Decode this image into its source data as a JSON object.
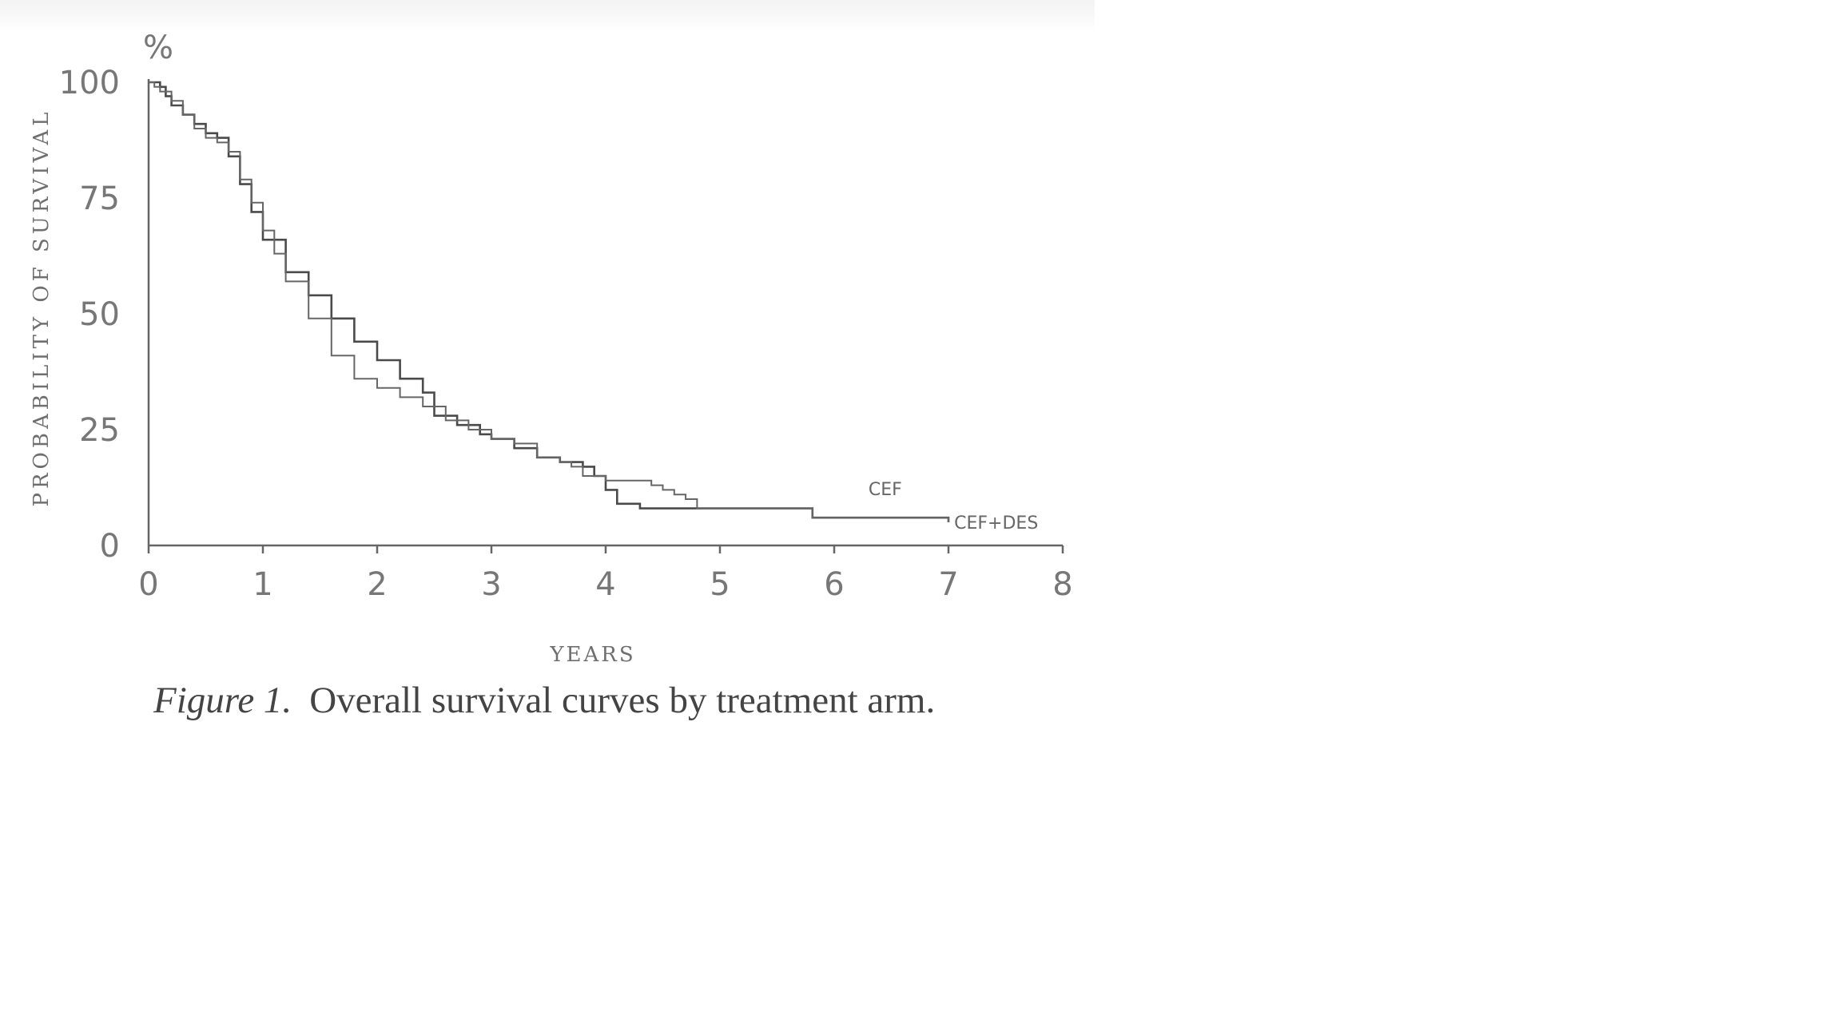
{
  "caption": {
    "figure_number": "Figure 1.",
    "text": "Overall survival curves by treatment arm."
  },
  "chart_data": {
    "type": "line",
    "title": "",
    "xlabel": "YEARS",
    "ylabel": "PROBABILITY OF SURVIVAL",
    "y_unit": "%",
    "xlim": [
      0,
      8
    ],
    "ylim": [
      0,
      100
    ],
    "x_ticks": [
      "0",
      "1",
      "2",
      "3",
      "4",
      "5",
      "6",
      "7",
      "8"
    ],
    "y_ticks": [
      "0",
      "25",
      "50",
      "75",
      "100"
    ],
    "grid": false,
    "legend": "direct labels at line ends",
    "series": [
      {
        "name": "CEF",
        "color": "#4a4a4a",
        "x": [
          0,
          0.05,
          0.1,
          0.15,
          0.2,
          0.3,
          0.4,
          0.5,
          0.6,
          0.7,
          0.8,
          0.9,
          1.0,
          1.2,
          1.4,
          1.6,
          1.8,
          2.0,
          2.2,
          2.4,
          2.5,
          2.7,
          2.9,
          3.0,
          3.2,
          3.4,
          3.6,
          3.8,
          3.9,
          4.0,
          4.1,
          4.3,
          4.5,
          4.7,
          4.9,
          5.2,
          5.5,
          5.8,
          5.81,
          6.0,
          6.5,
          7.0
        ],
        "y": [
          100,
          100,
          99,
          97,
          95,
          93,
          91,
          89,
          88,
          84,
          78,
          72,
          66,
          59,
          54,
          49,
          44,
          40,
          36,
          33,
          28,
          26,
          24,
          23,
          21,
          19,
          18,
          17,
          15,
          12,
          9,
          8,
          8,
          8,
          8,
          8,
          8,
          8,
          6,
          6,
          6,
          5
        ]
      },
      {
        "name": "CEF+DES",
        "color": "#666666",
        "x": [
          0,
          0.05,
          0.1,
          0.2,
          0.3,
          0.4,
          0.5,
          0.6,
          0.7,
          0.8,
          0.9,
          1.0,
          1.1,
          1.2,
          1.4,
          1.6,
          1.8,
          2.0,
          2.2,
          2.4,
          2.6,
          2.8,
          3.0,
          3.2,
          3.4,
          3.6,
          3.7,
          3.8,
          4.0,
          4.2,
          4.4,
          4.5,
          4.6,
          4.7,
          4.8,
          5.0,
          5.5,
          5.8,
          5.81,
          6.0,
          6.5,
          7.0
        ],
        "y": [
          100,
          99,
          98,
          96,
          93,
          90,
          88,
          87,
          85,
          79,
          74,
          68,
          63,
          57,
          49,
          41,
          36,
          34,
          32,
          30,
          27,
          25,
          23,
          22,
          19,
          18,
          17,
          15,
          14,
          14,
          13,
          12,
          11,
          10,
          8,
          8,
          8,
          8,
          6,
          6,
          6,
          5
        ]
      }
    ]
  }
}
